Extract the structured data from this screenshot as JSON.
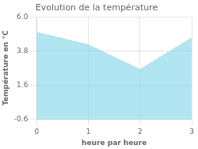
{
  "chart_data": {
    "type": "area",
    "title": "Evolution de la température",
    "x_label": "heure par heure",
    "y_label": "Température en °C",
    "x": [
      0,
      1,
      2,
      3
    ],
    "values": [
      5.0,
      4.2,
      2.6,
      4.65
    ],
    "color": "#7dd4ea",
    "line_style": "dotted",
    "xlim": [
      0,
      3
    ],
    "xticks": [
      0,
      1,
      2,
      3
    ],
    "ylim": [
      -0.6,
      6.0
    ],
    "yticks": [
      -0.6,
      1.6,
      3.8,
      {
        "value": 6.0,
        "label": "6.0"
      }
    ],
    "grid": true
  }
}
